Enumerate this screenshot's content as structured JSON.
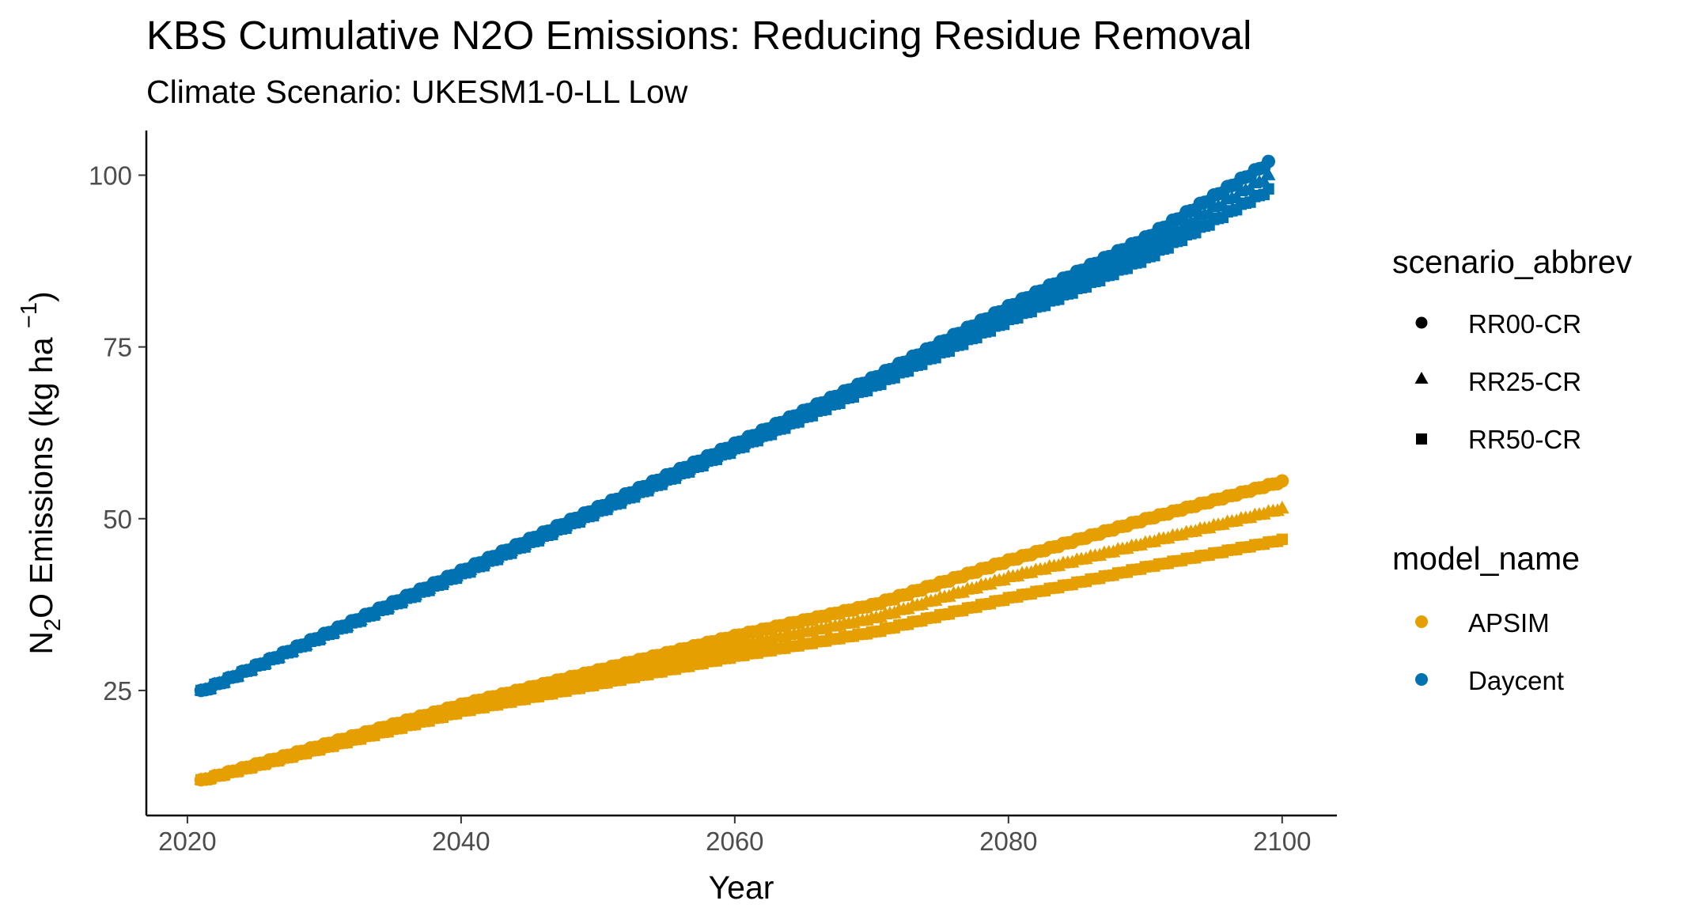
{
  "chart_data": {
    "type": "scatter",
    "title": "KBS  Cumulative N2O Emissions: Reducing Residue Removal",
    "subtitle": "Climate Scenario: UKESM1-0-LL Low",
    "xlabel": "Year",
    "ylabel": {
      "prefix": "N",
      "sub": "2",
      "mid": "O Emissions (kg ha ",
      "sup": "−1",
      "suffix": ")"
    },
    "xlim": [
      2017,
      2104
    ],
    "ylim": [
      6.8,
      106.5
    ],
    "x_ticks": [
      {
        "value": 2020,
        "label": "2020"
      },
      {
        "value": 2040,
        "label": "2040"
      },
      {
        "value": 2060,
        "label": "2060"
      },
      {
        "value": 2080,
        "label": "2080"
      },
      {
        "value": 2100,
        "label": "2100"
      }
    ],
    "y_ticks": [
      {
        "value": 25,
        "label": "25"
      },
      {
        "value": 50,
        "label": "50"
      },
      {
        "value": 75,
        "label": "75"
      },
      {
        "value": 100,
        "label": "100"
      }
    ],
    "grid": false,
    "legend_position": "right",
    "legends": {
      "shape": {
        "title": "scenario_abbrev",
        "entries": [
          {
            "label": "RR00-CR",
            "shape": "circle"
          },
          {
            "label": "RR25-CR",
            "shape": "triangle"
          },
          {
            "label": "RR50-CR",
            "shape": "square"
          }
        ]
      },
      "color": {
        "title": "model_name",
        "entries": [
          {
            "label": "APSIM",
            "color": "#E69F00"
          },
          {
            "label": "Daycent",
            "color": "#0072B2"
          }
        ]
      }
    },
    "series": [
      {
        "model": "Daycent",
        "scenario": "RR00-CR",
        "color": "#0072B2",
        "shape": "circle",
        "anchors": [
          [
            2021,
            25.0
          ],
          [
            2040,
            42.5
          ],
          [
            2060,
            61.0
          ],
          [
            2070,
            70.5
          ],
          [
            2080,
            81.0
          ],
          [
            2090,
            91.0
          ],
          [
            2099,
            102.0
          ]
        ]
      },
      {
        "model": "Daycent",
        "scenario": "RR25-CR",
        "color": "#0072B2",
        "shape": "triangle",
        "anchors": [
          [
            2021,
            25.0
          ],
          [
            2040,
            42.3
          ],
          [
            2060,
            60.6
          ],
          [
            2070,
            70.0
          ],
          [
            2080,
            80.0
          ],
          [
            2090,
            89.5
          ],
          [
            2099,
            100.0
          ]
        ]
      },
      {
        "model": "Daycent",
        "scenario": "RR50-CR",
        "color": "#0072B2",
        "shape": "square",
        "anchors": [
          [
            2021,
            25.0
          ],
          [
            2040,
            42.0
          ],
          [
            2060,
            60.2
          ],
          [
            2070,
            69.3
          ],
          [
            2080,
            79.0
          ],
          [
            2090,
            88.0
          ],
          [
            2099,
            98.0
          ]
        ]
      },
      {
        "model": "APSIM",
        "scenario": "RR00-CR",
        "color": "#E69F00",
        "shape": "circle",
        "anchors": [
          [
            2021,
            12.0
          ],
          [
            2040,
            23.0
          ],
          [
            2060,
            33.0
          ],
          [
            2070,
            37.5
          ],
          [
            2080,
            44.0
          ],
          [
            2090,
            50.0
          ],
          [
            2100,
            55.5
          ]
        ]
      },
      {
        "model": "APSIM",
        "scenario": "RR25-CR",
        "color": "#E69F00",
        "shape": "triangle",
        "anchors": [
          [
            2021,
            12.0
          ],
          [
            2040,
            22.5
          ],
          [
            2060,
            31.5
          ],
          [
            2070,
            35.5
          ],
          [
            2080,
            41.5
          ],
          [
            2090,
            46.5
          ],
          [
            2100,
            51.5
          ]
        ]
      },
      {
        "model": "APSIM",
        "scenario": "RR50-CR",
        "color": "#E69F00",
        "shape": "square",
        "anchors": [
          [
            2021,
            12.0
          ],
          [
            2040,
            22.0
          ],
          [
            2060,
            30.0
          ],
          [
            2070,
            33.5
          ],
          [
            2080,
            38.5
          ],
          [
            2090,
            43.0
          ],
          [
            2100,
            47.0
          ]
        ]
      }
    ]
  }
}
